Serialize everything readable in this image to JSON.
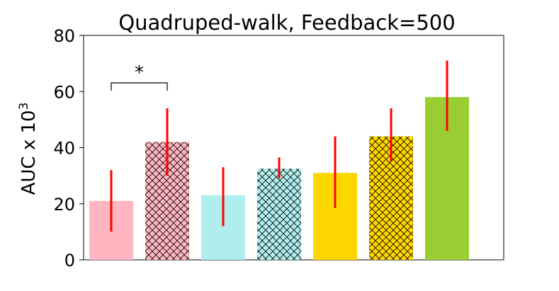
{
  "chart_data": {
    "type": "bar",
    "title": "Quadruped-walk, Feedback=500",
    "ylabel_base": "AUC x 10",
    "ylabel_exp": "3",
    "xlabel": "",
    "ylim": [
      0,
      80
    ],
    "yticks": [
      "0",
      "20",
      "40",
      "60",
      "80"
    ],
    "bars": [
      {
        "value": 21,
        "err": [
          10,
          32
        ],
        "color": "#ffb6c1",
        "hatch": false
      },
      {
        "value": 42,
        "err": [
          30,
          54
        ],
        "color": "#ffb6c1",
        "hatch": true
      },
      {
        "value": 23,
        "err": [
          12,
          33
        ],
        "color": "#b0eeee",
        "hatch": false
      },
      {
        "value": 32.5,
        "err": [
          29,
          36.5
        ],
        "color": "#b0eeee",
        "hatch": true
      },
      {
        "value": 31,
        "err": [
          18.5,
          44
        ],
        "color": "#ffd700",
        "hatch": false
      },
      {
        "value": 44,
        "err": [
          35,
          54
        ],
        "color": "#ffd700",
        "hatch": true
      },
      {
        "value": 58,
        "err": [
          46,
          71
        ],
        "color": "#9acd32",
        "hatch": false
      }
    ],
    "significance": {
      "from": 0,
      "to": 1,
      "label": "*"
    }
  }
}
